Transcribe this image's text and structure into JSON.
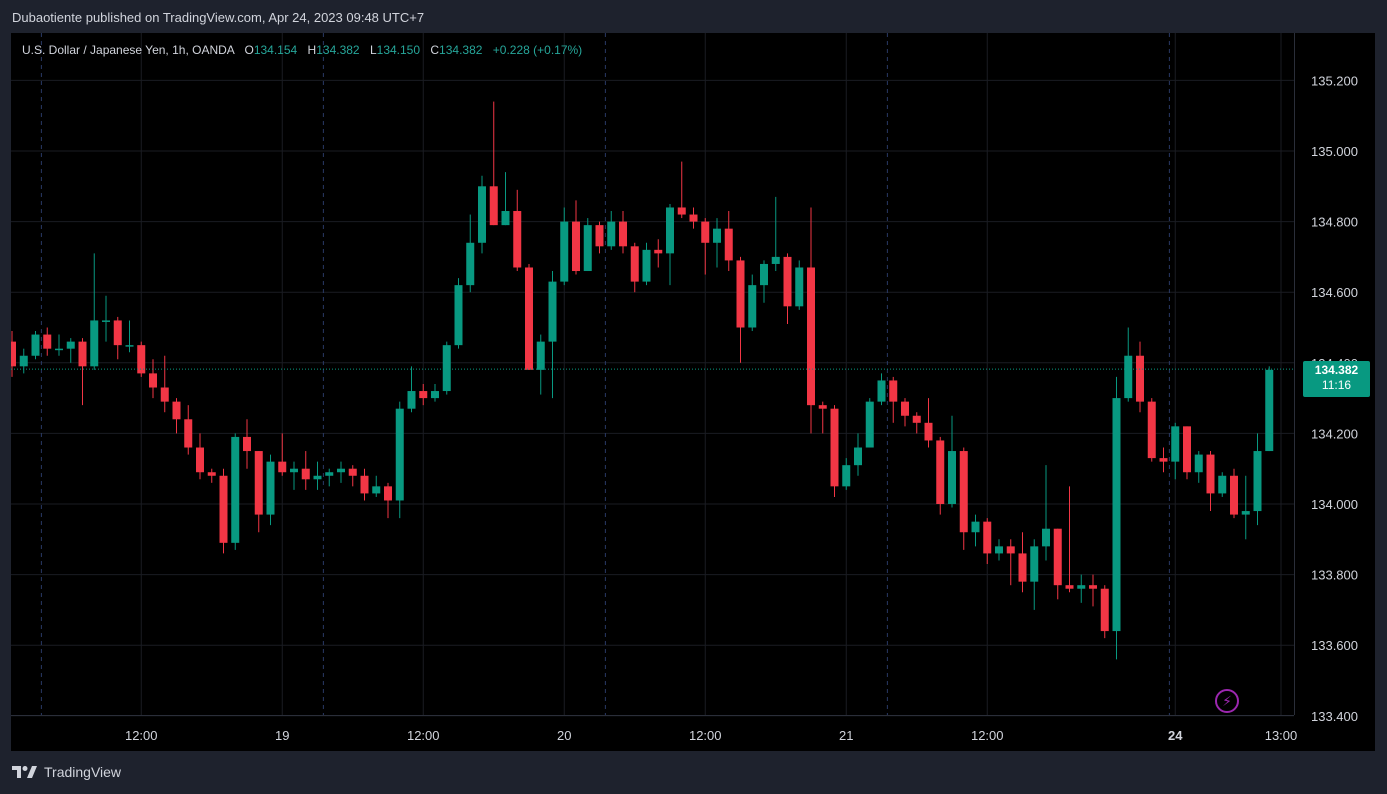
{
  "header": {
    "published": "Dubaotiente published on TradingView.com, Apr 24, 2023 09:48 UTC+7"
  },
  "legend": {
    "symbol": "U.S. Dollar / Japanese Yen, 1h, OANDA",
    "open_label": "O",
    "open": "134.154",
    "high_label": "H",
    "high": "134.382",
    "low_label": "L",
    "low": "134.150",
    "close_label": "C",
    "close": "134.382",
    "change": "+0.228 (+0.17%)"
  },
  "price_tag": {
    "price": "134.382",
    "countdown": "11:16"
  },
  "footer": {
    "brand": "TradingView"
  },
  "icons": {
    "footer_logo": "tradingview-logo-icon",
    "bolt": "lightning-icon"
  },
  "colors": {
    "up": "#089981",
    "down": "#f23645",
    "background": "#000000",
    "grid": "#1a1c22"
  },
  "chart_data": {
    "type": "candlestick",
    "y_ticks": [
      133.4,
      133.6,
      133.8,
      134.0,
      134.2,
      134.4,
      134.6,
      134.8,
      135.0,
      135.2
    ],
    "y_tick_labels": [
      "133.400",
      "133.600",
      "133.800",
      "134.000",
      "134.200",
      "134.400",
      "134.600",
      "134.800",
      "135.000",
      "135.200"
    ],
    "ylim": [
      133.4,
      135.3
    ],
    "x_labels": [
      {
        "label": "12:00",
        "i": 11
      },
      {
        "label": "19",
        "i": 23
      },
      {
        "label": "12:00",
        "i": 35
      },
      {
        "label": "20",
        "i": 47
      },
      {
        "label": "12:00",
        "i": 59
      },
      {
        "label": "21",
        "i": 71
      },
      {
        "label": "12:00",
        "i": 83
      },
      {
        "label": "24",
        "i": 99
      },
      {
        "label": "13:00",
        "i": 108
      }
    ],
    "day_separators": [
      2.5,
      26.5,
      50.5,
      74.5,
      98.5
    ],
    "last_price": 134.382,
    "candles": [
      [
        134.46,
        134.39,
        134.49,
        134.36
      ],
      [
        134.39,
        134.42,
        134.44,
        134.37
      ],
      [
        134.42,
        134.48,
        134.49,
        134.41
      ],
      [
        134.48,
        134.44,
        134.5,
        134.42
      ],
      [
        134.44,
        134.44,
        134.48,
        134.42
      ],
      [
        134.44,
        134.46,
        134.47,
        134.4
      ],
      [
        134.46,
        134.39,
        134.47,
        134.28
      ],
      [
        134.39,
        134.52,
        134.71,
        134.38
      ],
      [
        134.52,
        134.52,
        134.59,
        134.46
      ],
      [
        134.52,
        134.45,
        134.53,
        134.41
      ],
      [
        134.45,
        134.45,
        134.52,
        134.43
      ],
      [
        134.45,
        134.37,
        134.46,
        134.36
      ],
      [
        134.37,
        134.33,
        134.41,
        134.3
      ],
      [
        134.33,
        134.29,
        134.42,
        134.26
      ],
      [
        134.29,
        134.24,
        134.3,
        134.2
      ],
      [
        134.24,
        134.16,
        134.28,
        134.14
      ],
      [
        134.16,
        134.09,
        134.2,
        134.07
      ],
      [
        134.09,
        134.08,
        134.1,
        134.06
      ],
      [
        134.08,
        133.89,
        134.1,
        133.86
      ],
      [
        133.89,
        134.19,
        134.2,
        133.87
      ],
      [
        134.19,
        134.15,
        134.24,
        134.1
      ],
      [
        134.15,
        133.97,
        134.15,
        133.92
      ],
      [
        133.97,
        134.12,
        134.14,
        133.94
      ],
      [
        134.12,
        134.09,
        134.2,
        134.08
      ],
      [
        134.09,
        134.1,
        134.12,
        134.04
      ],
      [
        134.1,
        134.07,
        134.15,
        134.04
      ],
      [
        134.07,
        134.08,
        134.12,
        134.04
      ],
      [
        134.08,
        134.09,
        134.1,
        134.05
      ],
      [
        134.09,
        134.1,
        134.12,
        134.06
      ],
      [
        134.1,
        134.08,
        134.11,
        134.05
      ],
      [
        134.08,
        134.03,
        134.1,
        134.01
      ],
      [
        134.03,
        134.05,
        134.08,
        134.02
      ],
      [
        134.05,
        134.01,
        134.06,
        133.96
      ],
      [
        134.01,
        134.27,
        134.29,
        133.96
      ],
      [
        134.27,
        134.32,
        134.39,
        134.26
      ],
      [
        134.32,
        134.3,
        134.34,
        134.28
      ],
      [
        134.3,
        134.32,
        134.34,
        134.29
      ],
      [
        134.32,
        134.45,
        134.46,
        134.31
      ],
      [
        134.45,
        134.62,
        134.64,
        134.44
      ],
      [
        134.62,
        134.74,
        134.82,
        134.6
      ],
      [
        134.74,
        134.9,
        134.93,
        134.71
      ],
      [
        134.9,
        134.79,
        135.14,
        134.79
      ],
      [
        134.79,
        134.83,
        134.94,
        134.79
      ],
      [
        134.83,
        134.67,
        134.89,
        134.66
      ],
      [
        134.67,
        134.38,
        134.68,
        134.38
      ],
      [
        134.38,
        134.46,
        134.48,
        134.31
      ],
      [
        134.46,
        134.63,
        134.66,
        134.3
      ],
      [
        134.63,
        134.8,
        134.84,
        134.62
      ],
      [
        134.8,
        134.66,
        134.86,
        134.65
      ],
      [
        134.66,
        134.79,
        134.81,
        134.66
      ],
      [
        134.79,
        134.73,
        134.8,
        134.71
      ],
      [
        134.73,
        134.8,
        134.83,
        134.72
      ],
      [
        134.8,
        134.73,
        134.83,
        134.71
      ],
      [
        134.73,
        134.63,
        134.74,
        134.6
      ],
      [
        134.63,
        134.72,
        134.74,
        134.62
      ],
      [
        134.72,
        134.71,
        134.75,
        134.67
      ],
      [
        134.71,
        134.84,
        134.85,
        134.62
      ],
      [
        134.84,
        134.82,
        134.97,
        134.81
      ],
      [
        134.82,
        134.8,
        134.84,
        134.78
      ],
      [
        134.8,
        134.74,
        134.81,
        134.65
      ],
      [
        134.74,
        134.78,
        134.81,
        134.67
      ],
      [
        134.78,
        134.69,
        134.83,
        134.66
      ],
      [
        134.69,
        134.5,
        134.7,
        134.4
      ],
      [
        134.5,
        134.62,
        134.65,
        134.49
      ],
      [
        134.62,
        134.68,
        134.69,
        134.57
      ],
      [
        134.68,
        134.7,
        134.87,
        134.66
      ],
      [
        134.7,
        134.56,
        134.71,
        134.51
      ],
      [
        134.56,
        134.67,
        134.69,
        134.55
      ],
      [
        134.67,
        134.28,
        134.84,
        134.2
      ],
      [
        134.28,
        134.27,
        134.29,
        134.2
      ],
      [
        134.27,
        134.05,
        134.28,
        134.02
      ],
      [
        134.05,
        134.11,
        134.13,
        134.04
      ],
      [
        134.11,
        134.16,
        134.2,
        134.08
      ],
      [
        134.16,
        134.29,
        134.3,
        134.16
      ],
      [
        134.29,
        134.35,
        134.37,
        134.28
      ],
      [
        134.35,
        134.29,
        134.36,
        134.23
      ],
      [
        134.29,
        134.25,
        134.3,
        134.22
      ],
      [
        134.25,
        134.23,
        134.26,
        134.2
      ],
      [
        134.23,
        134.18,
        134.3,
        134.16
      ],
      [
        134.18,
        134.0,
        134.19,
        133.97
      ],
      [
        134.0,
        134.15,
        134.25,
        133.99
      ],
      [
        134.15,
        133.92,
        134.16,
        133.87
      ],
      [
        133.92,
        133.95,
        133.97,
        133.88
      ],
      [
        133.95,
        133.86,
        133.96,
        133.83
      ],
      [
        133.86,
        133.88,
        133.9,
        133.84
      ],
      [
        133.88,
        133.86,
        133.9,
        133.77
      ],
      [
        133.86,
        133.78,
        133.92,
        133.75
      ],
      [
        133.78,
        133.88,
        133.9,
        133.7
      ],
      [
        133.88,
        133.93,
        134.11,
        133.84
      ],
      [
        133.93,
        133.77,
        133.93,
        133.73
      ],
      [
        133.77,
        133.76,
        134.05,
        133.75
      ],
      [
        133.76,
        133.77,
        133.8,
        133.72
      ],
      [
        133.77,
        133.76,
        133.8,
        133.71
      ],
      [
        133.76,
        133.64,
        133.77,
        133.62
      ],
      [
        133.64,
        134.3,
        134.36,
        133.56
      ],
      [
        134.3,
        134.42,
        134.5,
        134.29
      ],
      [
        134.42,
        134.29,
        134.46,
        134.26
      ],
      [
        134.29,
        134.13,
        134.3,
        134.12
      ],
      [
        134.13,
        134.12,
        134.16,
        134.09
      ],
      [
        134.12,
        134.22,
        134.23,
        134.07
      ],
      [
        134.22,
        134.09,
        134.22,
        134.07
      ],
      [
        134.09,
        134.14,
        134.15,
        134.06
      ],
      [
        134.14,
        134.03,
        134.15,
        133.98
      ],
      [
        134.03,
        134.08,
        134.09,
        134.02
      ],
      [
        134.08,
        133.97,
        134.1,
        133.96
      ],
      [
        133.97,
        133.98,
        134.08,
        133.9
      ],
      [
        133.98,
        134.15,
        134.2,
        133.94
      ],
      [
        134.15,
        134.38,
        134.39,
        134.15
      ]
    ]
  }
}
